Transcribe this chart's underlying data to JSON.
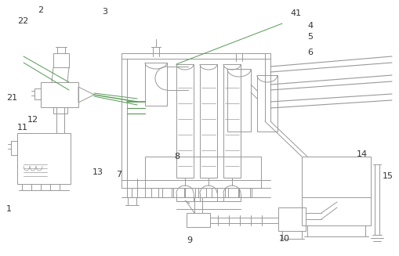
{
  "bg_color": "#ffffff",
  "line_color": "#999999",
  "green_color": "#559955",
  "figsize": [
    5.1,
    3.27
  ],
  "dpi": 100
}
